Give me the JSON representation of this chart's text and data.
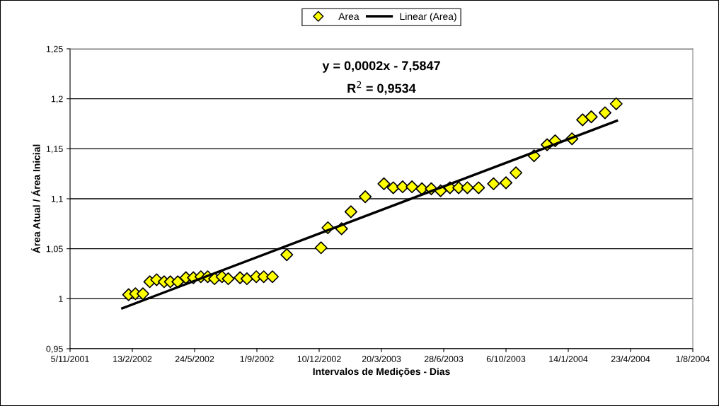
{
  "chart_data": {
    "type": "scatter",
    "xlabel": "Intervalos de Medições - Dias",
    "ylabel": "Área Atual / Área Inicial",
    "annotations": [
      "y = 0,0002x - 7,5847",
      "R$^{2}$ = 0,9534"
    ],
    "xlim": [
      "2001-11-05",
      "2004-08-01"
    ],
    "xticks": [
      {
        "value": "2001-11-05",
        "label": "5/11/2001"
      },
      {
        "value": "2002-02-13",
        "label": "13/2/2002"
      },
      {
        "value": "2002-05-24",
        "label": "24/5/2002"
      },
      {
        "value": "2002-09-01",
        "label": "1/9/2002"
      },
      {
        "value": "2002-12-10",
        "label": "10/12/2002"
      },
      {
        "value": "2003-03-20",
        "label": "20/3/2003"
      },
      {
        "value": "2003-06-28",
        "label": "28/6/2003"
      },
      {
        "value": "2003-10-06",
        "label": "6/10/2003"
      },
      {
        "value": "2004-01-14",
        "label": "14/1/2004"
      },
      {
        "value": "2004-04-23",
        "label": "23/4/2004"
      },
      {
        "value": "2004-08-01",
        "label": "1/8/2004"
      }
    ],
    "ylim": [
      0.95,
      1.25
    ],
    "yticks": [
      {
        "value": 0.95,
        "label": "0,95"
      },
      1,
      {
        "value": 1.05,
        "label": "1,05"
      },
      {
        "value": 1.1,
        "label": "1,1"
      },
      {
        "value": 1.15,
        "label": "1,15"
      },
      {
        "value": 1.2,
        "label": "1,2"
      },
      {
        "value": 1.25,
        "label": "1,25"
      }
    ],
    "grid": "y",
    "legend": "top",
    "marker": "diamond",
    "series": [
      {
        "name": "Area",
        "color": "#ffff00",
        "x": [
          "2002-02-07",
          "2002-02-18",
          "2002-03-02",
          "2002-03-13",
          "2002-03-24",
          "2002-04-05",
          "2002-04-15",
          "2002-04-27",
          "2002-05-10",
          "2002-05-22",
          "2002-06-03",
          "2002-06-14",
          "2002-06-25",
          "2002-07-07",
          "2002-07-17",
          "2002-08-05",
          "2002-08-16",
          "2002-08-31",
          "2002-09-12",
          "2002-09-26",
          "2002-10-19",
          "2002-12-13",
          "2002-12-24",
          "2003-01-15",
          "2003-01-30",
          "2003-02-22",
          "2003-03-24",
          "2003-04-08",
          "2003-04-23",
          "2003-05-08",
          "2003-05-24",
          "2003-06-08",
          "2003-06-23",
          "2003-07-08",
          "2003-07-22",
          "2003-08-05",
          "2003-08-23",
          "2003-09-16",
          "2003-10-06",
          "2003-10-22",
          "2003-11-20",
          "2003-12-11",
          "2003-12-24",
          "2004-01-20",
          "2004-02-06",
          "2004-02-20",
          "2004-03-13",
          "2004-03-31"
        ],
        "values": [
          1.004,
          1.005,
          1.005,
          1.017,
          1.019,
          1.017,
          1.017,
          1.017,
          1.021,
          1.021,
          1.022,
          1.022,
          1.02,
          1.022,
          1.02,
          1.021,
          1.02,
          1.022,
          1.022,
          1.022,
          1.044,
          1.051,
          1.071,
          1.07,
          1.087,
          1.102,
          1.115,
          1.111,
          1.112,
          1.112,
          1.11,
          1.11,
          1.108,
          1.111,
          1.111,
          1.111,
          1.111,
          1.115,
          1.116,
          1.126,
          1.143,
          1.154,
          1.158,
          1.16,
          1.179,
          1.182,
          1.186,
          1.195
        ]
      },
      {
        "name": "Linear (Area)",
        "type": "line",
        "color": "#000000",
        "marker": "none",
        "x": [
          "2002-01-28",
          "2004-04-01"
        ],
        "values": [
          0.9905,
          1.178
        ]
      }
    ]
  }
}
